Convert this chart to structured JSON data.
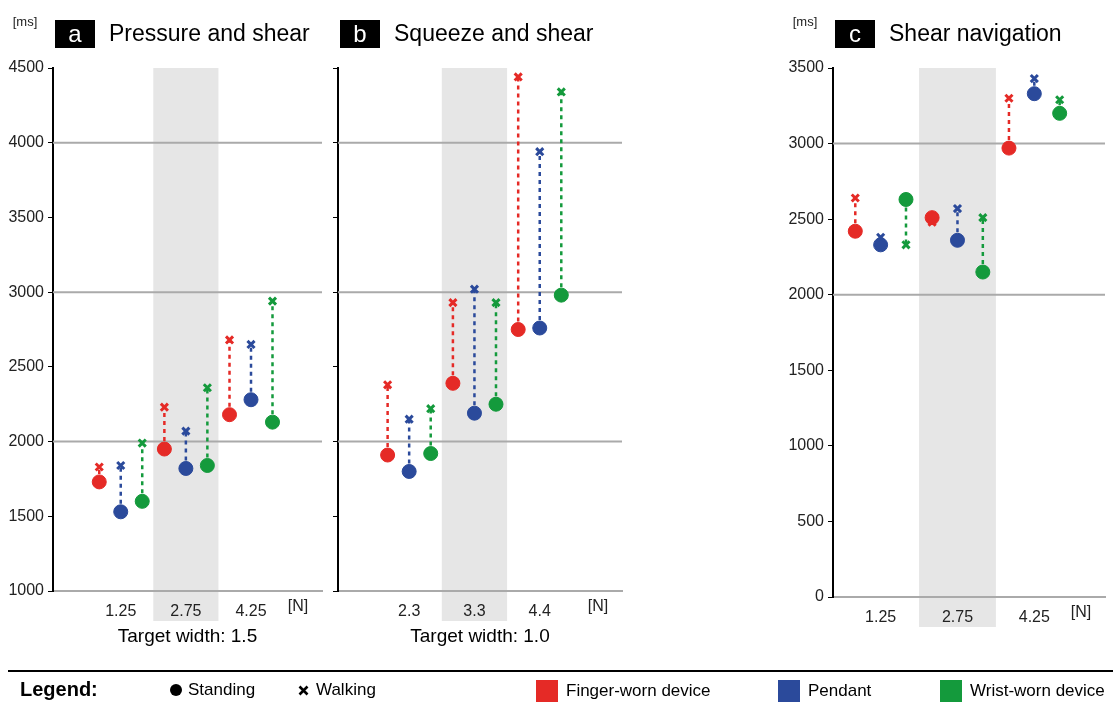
{
  "chart_data": [
    {
      "type": "scatter",
      "title": "Pressure and shear",
      "annotations": [
        "a",
        "Target width: 1.5"
      ],
      "ylabel": "[ms]",
      "xlabel": "[N]",
      "categories": [
        "1.25",
        "2.75",
        "4.25"
      ],
      "ylim": [
        1000,
        4500
      ],
      "yticks": [
        1000,
        1500,
        2000,
        2500,
        3000,
        3500,
        4000,
        4500
      ],
      "line_style": "dashed",
      "series": [
        {
          "color": "#e52a26",
          "marker": "circle",
          "values": [
            1730,
            1950,
            2180
          ]
        },
        {
          "color": "#e52a26",
          "marker": "cross",
          "values": [
            1830,
            2230,
            2680
          ]
        },
        {
          "color": "#2b4a9b",
          "marker": "circle",
          "values": [
            1530,
            1820,
            2280
          ]
        },
        {
          "color": "#2b4a9b",
          "marker": "cross",
          "values": [
            1840,
            2070,
            2650
          ]
        },
        {
          "color": "#149a3c",
          "marker": "circle",
          "values": [
            1600,
            1840,
            2130
          ]
        },
        {
          "color": "#149a3c",
          "marker": "cross",
          "values": [
            1990,
            2360,
            2940
          ]
        }
      ],
      "bands": [
        {
          "axis": "x",
          "from": "2.75",
          "to": "2.75",
          "color": "#e6e6e6"
        }
      ],
      "ref_lines": [
        {
          "axis": "y",
          "value": 2000,
          "color": "#aaaaaa"
        },
        {
          "axis": "y",
          "value": 3000,
          "color": "#aaaaaa"
        },
        {
          "axis": "y",
          "value": 4000,
          "color": "#aaaaaa"
        }
      ]
    },
    {
      "type": "scatter",
      "title": "Squeeze and shear",
      "annotations": [
        "b",
        "Target width: 1.0"
      ],
      "xlabel": "[N]",
      "categories": [
        "2.3",
        "3.3",
        "4.4"
      ],
      "ylim": [
        1000,
        4500
      ],
      "yticks": [
        1000,
        1500,
        2000,
        2500,
        3000,
        3500,
        4000,
        4500
      ],
      "tick_labels": "x",
      "line_style": "dashed",
      "series": [
        {
          "color": "#e52a26",
          "marker": "circle",
          "values": [
            1910,
            2390,
            2750
          ]
        },
        {
          "color": "#e52a26",
          "marker": "cross",
          "values": [
            2380,
            2930,
            4440
          ]
        },
        {
          "color": "#2b4a9b",
          "marker": "circle",
          "values": [
            1800,
            2190,
            2760
          ]
        },
        {
          "color": "#2b4a9b",
          "marker": "cross",
          "values": [
            2150,
            3020,
            3940
          ]
        },
        {
          "color": "#149a3c",
          "marker": "circle",
          "values": [
            1920,
            2250,
            2980
          ]
        },
        {
          "color": "#149a3c",
          "marker": "cross",
          "values": [
            2220,
            2930,
            4340
          ]
        }
      ],
      "bands": [
        {
          "axis": "x",
          "from": "3.3",
          "to": "3.3",
          "color": "#e6e6e6"
        }
      ],
      "ref_lines": [
        {
          "axis": "y",
          "value": 2000,
          "color": "#aaaaaa"
        },
        {
          "axis": "y",
          "value": 3000,
          "color": "#aaaaaa"
        },
        {
          "axis": "y",
          "value": 4000,
          "color": "#aaaaaa"
        }
      ]
    },
    {
      "type": "scatter",
      "title": "Shear navigation",
      "annotations": [
        "c"
      ],
      "ylabel": "[ms]",
      "xlabel": "[N]",
      "categories": [
        "1.25",
        "2.75",
        "4.25"
      ],
      "ylim": [
        0,
        3500
      ],
      "yticks": [
        0,
        500,
        1000,
        1500,
        2000,
        2500,
        3000,
        3500
      ],
      "line_style": "dashed",
      "series": [
        {
          "color": "#e52a26",
          "marker": "circle",
          "values": [
            2420,
            2510,
            2970
          ]
        },
        {
          "color": "#e52a26",
          "marker": "cross",
          "values": [
            2640,
            2480,
            3300
          ]
        },
        {
          "color": "#2b4a9b",
          "marker": "circle",
          "values": [
            2330,
            2360,
            3330
          ]
        },
        {
          "color": "#2b4a9b",
          "marker": "cross",
          "values": [
            2380,
            2570,
            3430
          ]
        },
        {
          "color": "#149a3c",
          "marker": "circle",
          "values": [
            2630,
            2150,
            3200
          ]
        },
        {
          "color": "#149a3c",
          "marker": "cross",
          "values": [
            2330,
            2510,
            3290
          ]
        }
      ],
      "bands": [
        {
          "axis": "x",
          "from": "2.75",
          "to": "2.75",
          "color": "#e6e6e6"
        }
      ],
      "ref_lines": [
        {
          "axis": "y",
          "value": 2000,
          "color": "#aaaaaa"
        },
        {
          "axis": "y",
          "value": 3000,
          "color": "#aaaaaa"
        }
      ]
    },
    {
      "type": "other",
      "legend_title": "Legend:",
      "series": [
        {
          "name": "Standing",
          "marker": "circle",
          "color": "#000000"
        },
        {
          "name": "Walking",
          "marker": "cross",
          "color": "#000000"
        },
        {
          "name": "Finger-worn device",
          "marker": "square",
          "color": "#e52a26"
        },
        {
          "name": "Pendant",
          "marker": "square",
          "color": "#2b4a9b"
        },
        {
          "name": "Wrist-worn device",
          "marker": "square",
          "color": "#149a3c"
        }
      ]
    }
  ]
}
